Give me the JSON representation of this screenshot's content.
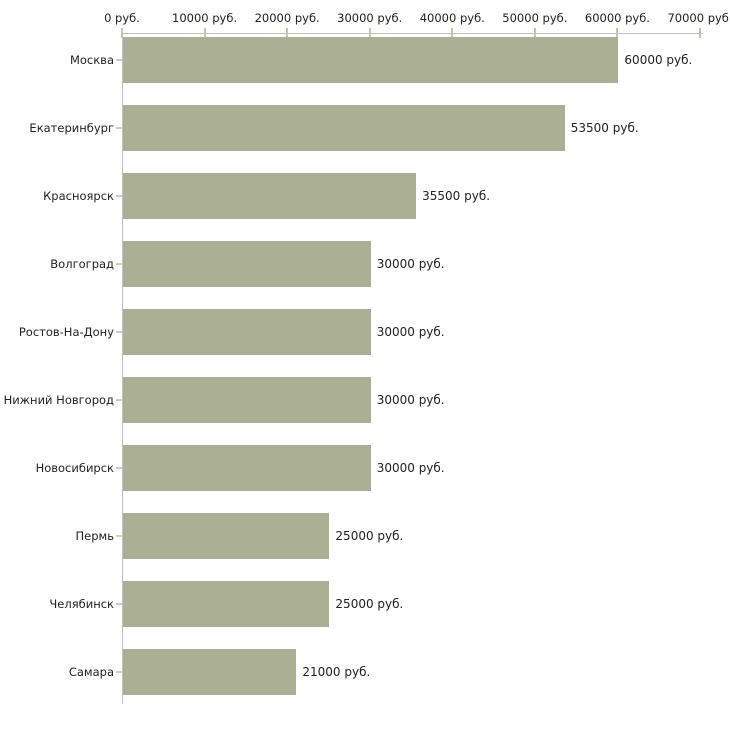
{
  "chart_data": {
    "type": "bar",
    "orientation": "horizontal",
    "title": "",
    "xlabel": "",
    "ylabel": "",
    "unit": "руб.",
    "categories": [
      "Москва",
      "Екатеринбург",
      "Красноярск",
      "Волгоград",
      "Ростов-На-Дону",
      "Нижний Новгород",
      "Новосибирск",
      "Пермь",
      "Челябинск",
      "Самара"
    ],
    "values": [
      60000,
      53500,
      35500,
      30000,
      30000,
      30000,
      30000,
      25000,
      25000,
      21000
    ],
    "value_labels": [
      "60000 руб.",
      "53500 руб.",
      "35500 руб.",
      "30000 руб.",
      "30000 руб.",
      "30000 руб.",
      "30000 руб.",
      "25000 руб.",
      "25000 руб.",
      "21000 руб."
    ],
    "x_axis": {
      "position": "top",
      "min": 0,
      "max": 70000,
      "ticks": [
        0,
        10000,
        20000,
        30000,
        40000,
        50000,
        60000,
        70000
      ],
      "tick_labels": [
        "0 руб.",
        "10000 руб.",
        "20000 руб.",
        "30000 руб.",
        "40000 руб.",
        "50000 руб.",
        "60000 руб.",
        "70000 руб."
      ]
    },
    "grid": false,
    "legend": false,
    "colors": {
      "bar": "#abb095",
      "x_tick": "#c9c49c",
      "y_tick": "#d4d1b2",
      "axis": "#c0c0c0",
      "text": "#222222",
      "background": "#ffffff"
    }
  }
}
